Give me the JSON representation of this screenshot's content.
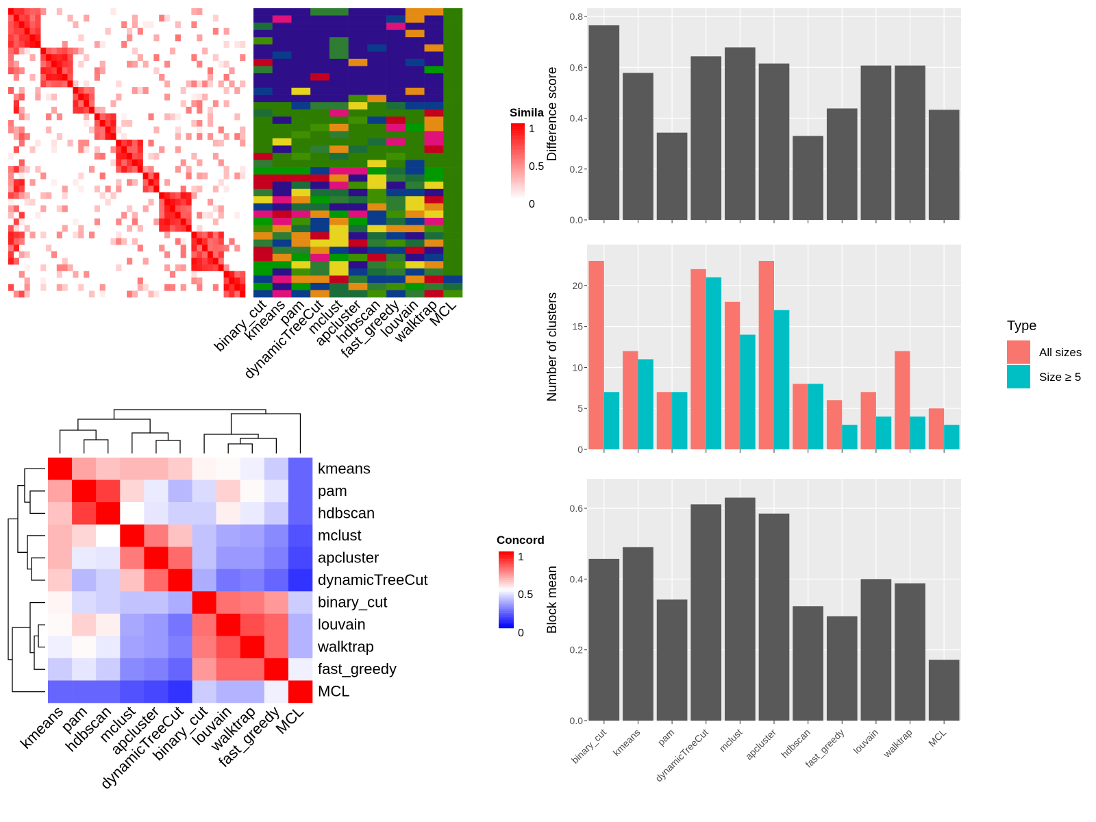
{
  "colors": {
    "panel_bg": "#ebebeb",
    "grid": "#ffffff",
    "bar_gray": "#595959",
    "all_sizes": "#f8766d",
    "size_ge5": "#00bfc4",
    "heat_high": "#ff0000",
    "heat_mid": "#ffffff",
    "heat_low": "#0000ff",
    "class_colors": [
      "#2e0f89",
      "#0b3c8c",
      "#e6d41e",
      "#e48b14",
      "#009900",
      "#2e7d32",
      "#c4001e",
      "#e0117a",
      "#3f8f00",
      "#1b6e3a"
    ]
  },
  "chart_data": [
    {
      "id": "similarity_heatmap",
      "type": "heatmap",
      "legend": {
        "title": "Simila",
        "ticks": [
          "1",
          "0.5",
          "0"
        ]
      },
      "classification_columns": [
        "binary_cut",
        "kmeans",
        "pam",
        "dynamicTreeCut",
        "mclust",
        "apcluster",
        "hdbscan",
        "fast_greedy",
        "louvain",
        "walktrap",
        "MCL"
      ]
    },
    {
      "id": "concordance_heatmap",
      "type": "heatmap",
      "methods": [
        "kmeans",
        "pam",
        "hdbscan",
        "mclust",
        "apcluster",
        "dynamicTreeCut",
        "binary_cut",
        "louvain",
        "walktrap",
        "fast_greedy",
        "MCL"
      ],
      "legend": {
        "title": "Concord",
        "ticks": [
          "1",
          "0.5",
          "0"
        ]
      },
      "matrix": [
        [
          1.0,
          0.68,
          0.62,
          0.64,
          0.64,
          0.6,
          0.52,
          0.51,
          0.47,
          0.4,
          0.2
        ],
        [
          0.68,
          1.0,
          0.88,
          0.58,
          0.46,
          0.36,
          0.43,
          0.59,
          0.51,
          0.45,
          0.2
        ],
        [
          0.62,
          0.88,
          1.0,
          0.5,
          0.45,
          0.41,
          0.41,
          0.53,
          0.46,
          0.4,
          0.2
        ],
        [
          0.64,
          0.58,
          0.5,
          1.0,
          0.76,
          0.62,
          0.38,
          0.33,
          0.32,
          0.27,
          0.16
        ],
        [
          0.64,
          0.46,
          0.45,
          0.76,
          1.0,
          0.79,
          0.38,
          0.3,
          0.3,
          0.25,
          0.14
        ],
        [
          0.6,
          0.36,
          0.41,
          0.62,
          0.79,
          1.0,
          0.34,
          0.23,
          0.25,
          0.2,
          0.1
        ],
        [
          0.52,
          0.43,
          0.41,
          0.38,
          0.38,
          0.34,
          1.0,
          0.78,
          0.76,
          0.7,
          0.4
        ],
        [
          0.51,
          0.59,
          0.53,
          0.33,
          0.3,
          0.23,
          0.78,
          1.0,
          0.85,
          0.8,
          0.35
        ],
        [
          0.47,
          0.51,
          0.46,
          0.32,
          0.3,
          0.25,
          0.76,
          0.85,
          1.0,
          0.8,
          0.35
        ],
        [
          0.4,
          0.45,
          0.4,
          0.27,
          0.25,
          0.2,
          0.7,
          0.8,
          0.8,
          1.0,
          0.47
        ],
        [
          0.2,
          0.2,
          0.2,
          0.16,
          0.14,
          0.1,
          0.4,
          0.35,
          0.35,
          0.47,
          1.0
        ]
      ]
    },
    {
      "id": "difference_score",
      "type": "bar",
      "categories": [
        "binary_cut",
        "kmeans",
        "pam",
        "dynamicTreeCut",
        "mclust",
        "apcluster",
        "hdbscan",
        "fast_greedy",
        "louvain",
        "walktrap",
        "MCL"
      ],
      "values": [
        0.765,
        0.578,
        0.343,
        0.643,
        0.678,
        0.615,
        0.33,
        0.438,
        0.607,
        0.607,
        0.433
      ],
      "ylabel": "Difference score",
      "ylim": [
        0,
        0.8
      ],
      "yticks": [
        "0.0",
        "0.2",
        "0.4",
        "0.6",
        "0.8"
      ]
    },
    {
      "id": "number_of_clusters",
      "type": "bar",
      "categories": [
        "binary_cut",
        "kmeans",
        "pam",
        "dynamicTreeCut",
        "mclust",
        "apcluster",
        "hdbscan",
        "fast_greedy",
        "louvain",
        "walktrap",
        "MCL"
      ],
      "series": [
        {
          "name": "All sizes",
          "values": [
            23,
            12,
            7,
            22,
            18,
            23,
            8,
            6,
            7,
            12,
            5
          ]
        },
        {
          "name": "Size ≥ 5",
          "values": [
            7,
            11,
            7,
            21,
            14,
            17,
            8,
            3,
            4,
            4,
            3
          ]
        }
      ],
      "ylabel": "Number of clusters",
      "ylim": [
        0,
        24
      ],
      "yticks": [
        "0",
        "5",
        "10",
        "15",
        "20"
      ],
      "legend": {
        "title": "Type",
        "position": "right"
      }
    },
    {
      "id": "block_mean",
      "type": "bar",
      "categories": [
        "binary_cut",
        "kmeans",
        "pam",
        "dynamicTreeCut",
        "mclust",
        "apcluster",
        "hdbscan",
        "fast_greedy",
        "louvain",
        "walktrap",
        "MCL"
      ],
      "values": [
        0.457,
        0.49,
        0.342,
        0.611,
        0.63,
        0.585,
        0.323,
        0.295,
        0.4,
        0.388,
        0.172
      ],
      "ylabel": "Block mean",
      "ylim": [
        0,
        0.66
      ],
      "yticks": [
        "0.0",
        "0.2",
        "0.4",
        "0.6"
      ]
    }
  ]
}
